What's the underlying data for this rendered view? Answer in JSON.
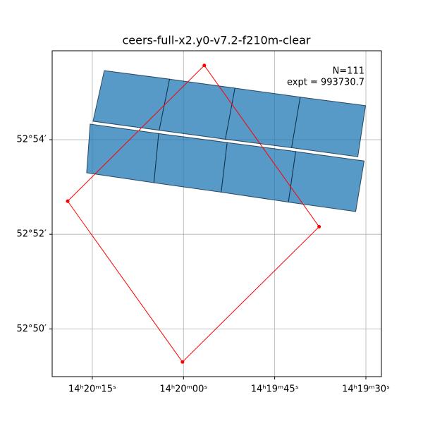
{
  "chart_data": {
    "type": "footprint",
    "title": "ceers-full-x2.y0-v7.2-f210m-clear",
    "annotations": [
      "N=111",
      "expt = 993730.7"
    ],
    "xlim": [
      81.6,
      27.45
    ],
    "ylim": [
      48.99,
      55.88
    ],
    "xticks": [
      {
        "value": 75,
        "label": "14ʰ20ᵐ15ˢ"
      },
      {
        "value": 60,
        "label": "14ʰ20ᵐ00ˢ"
      },
      {
        "value": 45,
        "label": "14ʰ19ᵐ45ˢ"
      },
      {
        "value": 30,
        "label": "14ʰ19ᵐ30ˢ"
      }
    ],
    "yticks": [
      {
        "value": 54,
        "label": "52°54′"
      },
      {
        "value": 52,
        "label": "52°52′"
      },
      {
        "value": 50,
        "label": "52°50′"
      }
    ],
    "grid": true,
    "footprint_color": "#1f77b4",
    "footprints": [
      [
        [
          73.03,
          55.46
        ],
        [
          62.29,
          55.28
        ],
        [
          64.0,
          54.2
        ],
        [
          74.88,
          54.39
        ]
      ],
      [
        [
          62.29,
          55.28
        ],
        [
          51.54,
          55.09
        ],
        [
          53.11,
          54.01
        ],
        [
          64.0,
          54.2
        ]
      ],
      [
        [
          51.54,
          55.09
        ],
        [
          40.8,
          54.9
        ],
        [
          42.22,
          53.83
        ],
        [
          53.11,
          54.01
        ]
      ],
      [
        [
          40.8,
          54.9
        ],
        [
          30.06,
          54.72
        ],
        [
          31.33,
          53.64
        ],
        [
          42.22,
          53.83
        ]
      ],
      [
        [
          75.35,
          54.33
        ],
        [
          64.08,
          54.13
        ],
        [
          64.86,
          53.09
        ],
        [
          75.93,
          53.3
        ]
      ],
      [
        [
          64.08,
          54.13
        ],
        [
          52.82,
          53.94
        ],
        [
          53.8,
          52.89
        ],
        [
          64.86,
          53.09
        ]
      ],
      [
        [
          52.82,
          53.94
        ],
        [
          41.55,
          53.75
        ],
        [
          42.74,
          52.68
        ],
        [
          53.8,
          52.89
        ]
      ],
      [
        [
          41.55,
          53.75
        ],
        [
          30.29,
          53.55
        ],
        [
          31.68,
          52.48
        ],
        [
          42.74,
          52.68
        ]
      ]
    ],
    "region_color": "#ff0000",
    "region": [
      [
        56.58,
        55.57
      ],
      [
        37.7,
        52.16
      ],
      [
        60.17,
        49.3
      ],
      [
        79.05,
        52.7
      ]
    ]
  }
}
